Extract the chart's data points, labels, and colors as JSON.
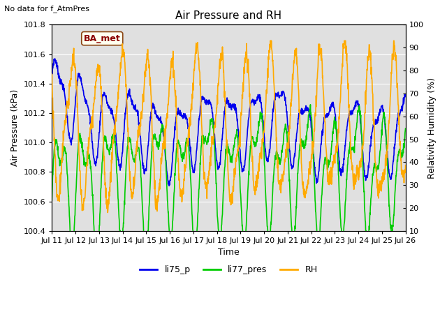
{
  "title": "Air Pressure and RH",
  "top_left_text": "No data for f_AtmPres",
  "annotation_box": "BA_met",
  "xlabel": "Time",
  "ylabel_left": "Air Pressure (kPa)",
  "ylabel_right": "Relativity Humidity (%)",
  "ylim_left": [
    100.4,
    101.8
  ],
  "ylim_right": [
    10,
    100
  ],
  "yticks_left": [
    100.4,
    100.6,
    100.8,
    101.0,
    101.2,
    101.4,
    101.6,
    101.8
  ],
  "yticks_right": [
    10,
    20,
    30,
    40,
    50,
    60,
    70,
    80,
    90,
    100
  ],
  "xticklabels": [
    "Jul 11",
    "Jul 12",
    "Jul 13",
    "Jul 14",
    "Jul 15",
    "Jul 16",
    "Jul 17",
    "Jul 18",
    "Jul 19",
    "Jul 20",
    "Jul 21",
    "Jul 22",
    "Jul 23",
    "Jul 24",
    "Jul 25",
    "Jul 26"
  ],
  "color_li75": "#0000ee",
  "color_li77": "#00cc00",
  "color_rh": "#ffaa00",
  "color_background": "#e0e0e0",
  "color_grid": "#ffffff",
  "legend_labels": [
    "li75_p",
    "li77_pres",
    "RH"
  ],
  "title_fontsize": 11,
  "label_fontsize": 9,
  "tick_fontsize": 8,
  "legend_fontsize": 9,
  "n_points": 1440,
  "seed": 7
}
